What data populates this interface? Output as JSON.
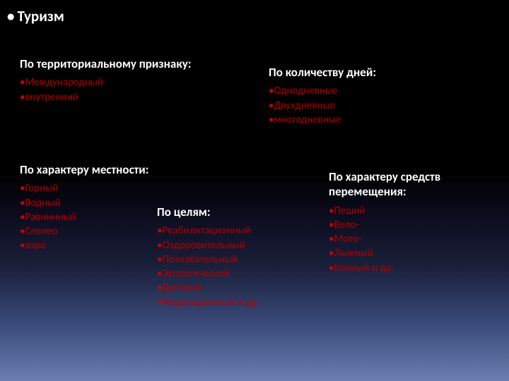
{
  "title": "Туризм",
  "blocks": {
    "territory": {
      "heading": "По территориальному признаку:",
      "items": [
        "Международный",
        "внутренний"
      ]
    },
    "days": {
      "heading": "По количеству дней:",
      "items": [
        "Однодневные",
        "Двухдневные",
        "многодневные"
      ]
    },
    "terrain": {
      "heading": "По характеру местности:",
      "items": [
        "Горный",
        "Водный",
        "Равнинный",
        "Спелео",
        "аэро"
      ]
    },
    "purpose": {
      "heading": "По целям:",
      "items": [
        "Реабилитационный",
        "Оздоровительный",
        "Познавательный",
        "Экологический",
        "Деловой",
        "Рекреационный и др."
      ]
    },
    "transport": {
      "heading": "По характеру средств перемещения:",
      "items": [
        "Пеший",
        "Вело-",
        "Мото-",
        "Лыжный",
        "Конный и др."
      ]
    }
  },
  "colors": {
    "heading": "#ffffff",
    "bullet": "#c80000",
    "item_text": "#b00000",
    "background_gradient": [
      "#000000",
      "#0a0a1a",
      "#1a1f3a",
      "#3a4a7a",
      "#6a7fb0"
    ]
  },
  "typography": {
    "title_fontsize": 21,
    "heading_fontsize": 17,
    "item_fontsize": 15,
    "font_family": "Calibri"
  }
}
